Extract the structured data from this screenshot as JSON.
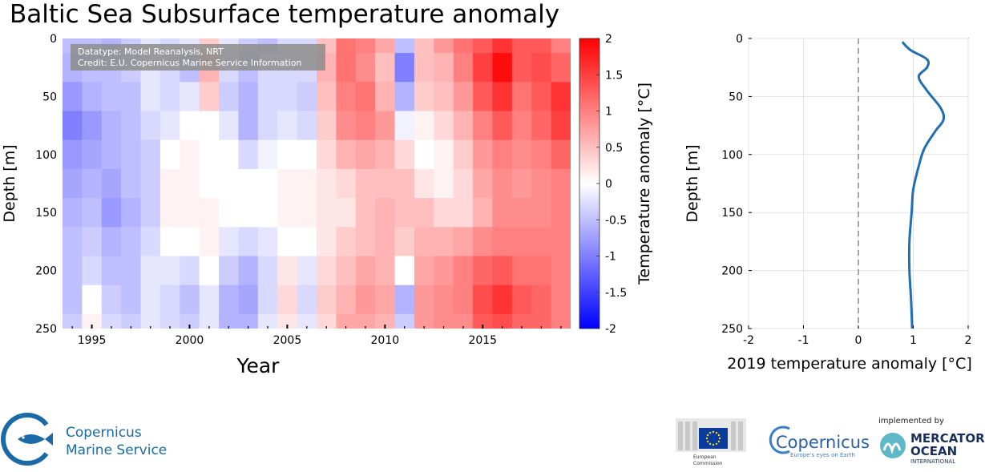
{
  "title": "Baltic Sea Subsurface temperature anomaly",
  "credits_box": {
    "line1": "Datatype: Model Reanalysis, NRT",
    "line2": "Credit: E.U. Copernicus Marine Service Information"
  },
  "chart_data": [
    {
      "type": "heatmap",
      "title": "Baltic Sea Subsurface temperature anomaly",
      "xlabel": "Year",
      "ylabel": "Depth [m]",
      "xlim": [
        1993.5,
        2019.5
      ],
      "ylim": [
        0,
        250
      ],
      "x_ticks": [
        1995,
        2000,
        2005,
        2010,
        2015
      ],
      "y_ticks": [
        0,
        50,
        100,
        150,
        200,
        250
      ],
      "colorbar": {
        "label": "Temperature anomaly [°C]",
        "range": [
          -2,
          2
        ],
        "ticks": [
          "2",
          "1.5",
          "1",
          "0.5",
          "0",
          "-0.5",
          "-1",
          "-1.5",
          "-2"
        ],
        "low_color": "#0000ff",
        "mid_color": "#ffffff",
        "high_color": "#ff0000"
      },
      "depths": [
        0,
        25,
        50,
        75,
        100,
        125,
        150,
        175,
        200,
        225,
        250
      ],
      "columns": [
        {
          "year": 1994,
          "values": [
            -0.5,
            -0.6,
            -0.8,
            -1.0,
            -0.8,
            -0.7,
            -0.6,
            -0.5,
            -0.5,
            -0.5,
            -0.4
          ]
        },
        {
          "year": 1995,
          "values": [
            -0.5,
            -0.5,
            -0.6,
            -0.8,
            -0.7,
            -0.6,
            -0.5,
            -0.4,
            -0.3,
            0.0,
            0.1
          ]
        },
        {
          "year": 1996,
          "values": [
            -0.6,
            -0.5,
            -0.5,
            -0.6,
            -0.6,
            -0.7,
            -0.8,
            -0.6,
            -0.5,
            -0.4,
            -0.3
          ]
        },
        {
          "year": 1997,
          "values": [
            -0.4,
            -0.4,
            -0.5,
            -0.5,
            -0.5,
            -0.5,
            -0.6,
            -0.5,
            -0.5,
            -0.5,
            -0.4
          ]
        },
        {
          "year": 1998,
          "values": [
            -0.2,
            -0.2,
            -0.2,
            -0.3,
            -0.4,
            -0.4,
            -0.4,
            -0.3,
            -0.2,
            -0.2,
            -0.2
          ]
        },
        {
          "year": 1999,
          "values": [
            -0.3,
            -0.3,
            -0.3,
            -0.2,
            0.0,
            0.1,
            0.1,
            0.0,
            -0.2,
            -0.3,
            -0.3
          ]
        },
        {
          "year": 2000,
          "values": [
            -0.2,
            -0.5,
            -0.2,
            0.0,
            0.1,
            0.1,
            0.1,
            0.0,
            -0.3,
            -0.5,
            -0.4
          ]
        },
        {
          "year": 2001,
          "values": [
            0.4,
            0.6,
            0.4,
            0.0,
            0.0,
            0.0,
            0.1,
            0.1,
            0.0,
            -0.2,
            -0.2
          ]
        },
        {
          "year": 2002,
          "values": [
            -0.2,
            -0.3,
            -0.4,
            -0.2,
            0.0,
            0.0,
            0.0,
            -0.2,
            -0.4,
            -0.6,
            -0.6
          ]
        },
        {
          "year": 2003,
          "values": [
            -0.4,
            -0.5,
            -0.6,
            -0.6,
            -0.3,
            0.0,
            0.0,
            -0.3,
            -0.6,
            -0.7,
            -0.6
          ]
        },
        {
          "year": 2004,
          "values": [
            -0.5,
            -0.3,
            -0.3,
            -0.3,
            -0.1,
            0.0,
            0.0,
            -0.2,
            -0.3,
            -0.3,
            -0.2
          ]
        },
        {
          "year": 2005,
          "values": [
            -0.3,
            -0.3,
            -0.3,
            -0.2,
            0.0,
            0.1,
            0.1,
            0.0,
            0.2,
            0.3,
            0.2
          ]
        },
        {
          "year": 2006,
          "values": [
            -0.3,
            -0.3,
            -0.4,
            -0.3,
            0.0,
            0.1,
            0.1,
            0.0,
            -0.2,
            -0.3,
            -0.2
          ]
        },
        {
          "year": 2007,
          "values": [
            0.5,
            0.6,
            0.5,
            0.4,
            0.3,
            0.2,
            0.2,
            0.2,
            0.3,
            0.4,
            0.3
          ]
        },
        {
          "year": 2008,
          "values": [
            1.1,
            1.1,
            1.0,
            0.9,
            0.6,
            0.3,
            0.2,
            0.4,
            0.5,
            0.6,
            0.7
          ]
        },
        {
          "year": 2009,
          "values": [
            1.0,
            0.9,
            1.1,
            1.0,
            0.7,
            0.5,
            0.5,
            0.5,
            0.7,
            0.8,
            0.7
          ]
        },
        {
          "year": 2010,
          "values": [
            0.7,
            0.5,
            0.6,
            0.8,
            0.6,
            0.5,
            0.6,
            0.6,
            0.6,
            0.7,
            0.6
          ]
        },
        {
          "year": 2011,
          "values": [
            -0.5,
            -1.0,
            -0.6,
            -0.1,
            0.3,
            0.5,
            0.5,
            0.4,
            0.0,
            -0.6,
            -0.4
          ]
        },
        {
          "year": 2012,
          "values": [
            0.5,
            0.5,
            0.4,
            0.1,
            0.0,
            0.2,
            0.5,
            0.6,
            0.7,
            0.8,
            0.8
          ]
        },
        {
          "year": 2013,
          "values": [
            0.8,
            0.6,
            0.5,
            0.3,
            0.1,
            0.1,
            0.3,
            0.6,
            0.8,
            0.9,
            0.9
          ]
        },
        {
          "year": 2014,
          "values": [
            1.1,
            1.0,
            0.8,
            0.6,
            0.4,
            0.3,
            0.3,
            0.7,
            1.0,
            1.0,
            0.9
          ]
        },
        {
          "year": 2015,
          "values": [
            1.3,
            1.5,
            1.3,
            1.0,
            0.8,
            0.7,
            0.6,
            0.9,
            1.2,
            1.4,
            1.3
          ]
        },
        {
          "year": 2016,
          "values": [
            1.6,
            1.9,
            1.6,
            1.3,
            1.0,
            0.9,
            0.9,
            1.0,
            1.3,
            1.6,
            1.4
          ]
        },
        {
          "year": 2017,
          "values": [
            1.3,
            1.3,
            1.1,
            1.0,
            0.9,
            0.8,
            0.9,
            1.0,
            1.1,
            1.3,
            1.2
          ]
        },
        {
          "year": 2018,
          "values": [
            1.3,
            1.4,
            1.3,
            1.2,
            1.0,
            0.9,
            0.9,
            1.0,
            1.1,
            1.2,
            1.2
          ]
        },
        {
          "year": 2019,
          "values": [
            1.0,
            1.2,
            1.6,
            1.5,
            1.2,
            1.0,
            1.0,
            1.0,
            1.0,
            1.0,
            1.0
          ]
        }
      ]
    },
    {
      "type": "line",
      "xlabel": "2019 temperature anomaly [°C]",
      "ylabel": "Depth [m]",
      "xlim": [
        -2,
        2
      ],
      "ylim": [
        0,
        250
      ],
      "x_ticks": [
        -2,
        -1,
        0,
        1,
        2
      ],
      "y_ticks": [
        0,
        50,
        100,
        150,
        200,
        250
      ],
      "reference_line_x": 0,
      "line_color": "#1f6fb2",
      "series": [
        {
          "name": "2019",
          "depth": [
            3,
            10,
            18,
            25,
            33,
            45,
            60,
            70,
            80,
            95,
            110,
            130,
            150,
            175,
            200,
            225,
            250
          ],
          "anomaly": [
            0.8,
            0.95,
            1.25,
            1.25,
            1.1,
            1.25,
            1.5,
            1.55,
            1.4,
            1.2,
            1.1,
            1.0,
            0.97,
            0.93,
            0.93,
            0.96,
            0.98
          ]
        }
      ]
    }
  ],
  "logos": {
    "copernicus_marine_line1": "Copernicus",
    "copernicus_marine_line2": "Marine Service",
    "ec_line1": "European",
    "ec_line2": "Commission",
    "copernicus_name": "Copernicus",
    "copernicus_tagline": "Europe's eyes on Earth",
    "implemented_by": "implemented by",
    "mercator_line1": "MERCATOR",
    "mercator_line2": "OCEAN",
    "mercator_line3": "INTERNATIONAL"
  }
}
